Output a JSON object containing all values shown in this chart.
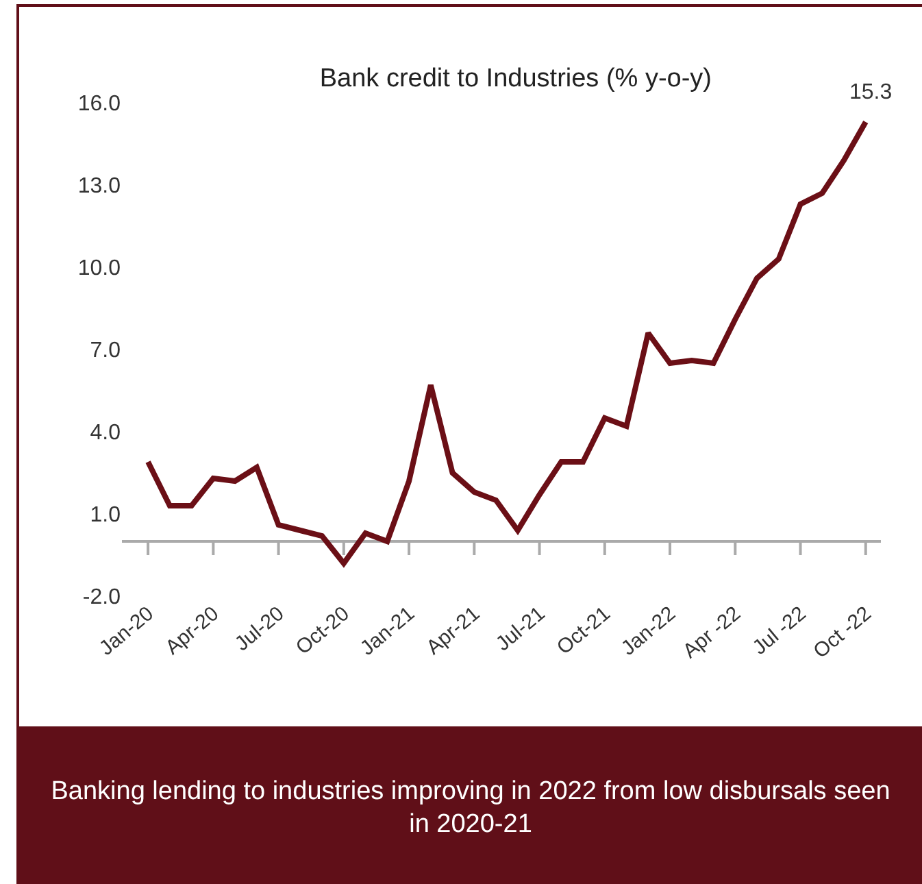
{
  "chart_data": {
    "type": "line",
    "title": "Bank credit to Industries (% y-o-y)",
    "categories": [
      "Jan-20",
      null,
      null,
      "Apr-20",
      null,
      null,
      "Jul-20",
      null,
      null,
      "Oct-20",
      null,
      null,
      "Jan-21",
      null,
      null,
      "Apr-21",
      null,
      null,
      "Jul-21",
      null,
      null,
      "Oct-21",
      null,
      null,
      "Jan-22",
      null,
      null,
      "Apr -22",
      null,
      null,
      "Jul -22",
      null,
      null,
      "Oct -22"
    ],
    "series": [
      {
        "color": "#6b0f16",
        "values": [
          2.9,
          1.3,
          1.3,
          2.3,
          2.2,
          2.7,
          0.6,
          0.4,
          0.2,
          -0.8,
          0.3,
          0.0,
          2.2,
          5.7,
          2.5,
          1.8,
          1.5,
          0.4,
          1.7,
          2.9,
          2.9,
          4.5,
          4.2,
          7.6,
          6.5,
          6.6,
          6.5,
          8.1,
          9.6,
          10.3,
          12.3,
          12.7,
          13.9,
          15.3
        ]
      }
    ],
    "ylim": [
      -2,
      16
    ],
    "yticks": [
      {
        "value": -2,
        "label": "-2.0"
      },
      {
        "value": 1,
        "label": "1.0"
      },
      {
        "value": 4,
        "label": "4.0"
      },
      {
        "value": 7,
        "label": "7.0"
      },
      {
        "value": 10,
        "label": "10.0"
      },
      {
        "value": 13,
        "label": "13.0"
      },
      {
        "value": 16,
        "label": "16.0"
      }
    ],
    "annotations": [
      {
        "text": "15.3",
        "x": "Oct -22",
        "y": 15.3
      },
      "Banking lending to industries improving in 2022 from low disbursals seen in 2020-21"
    ],
    "grid": false,
    "legend": false,
    "marker": "none",
    "line_style": "solid"
  }
}
